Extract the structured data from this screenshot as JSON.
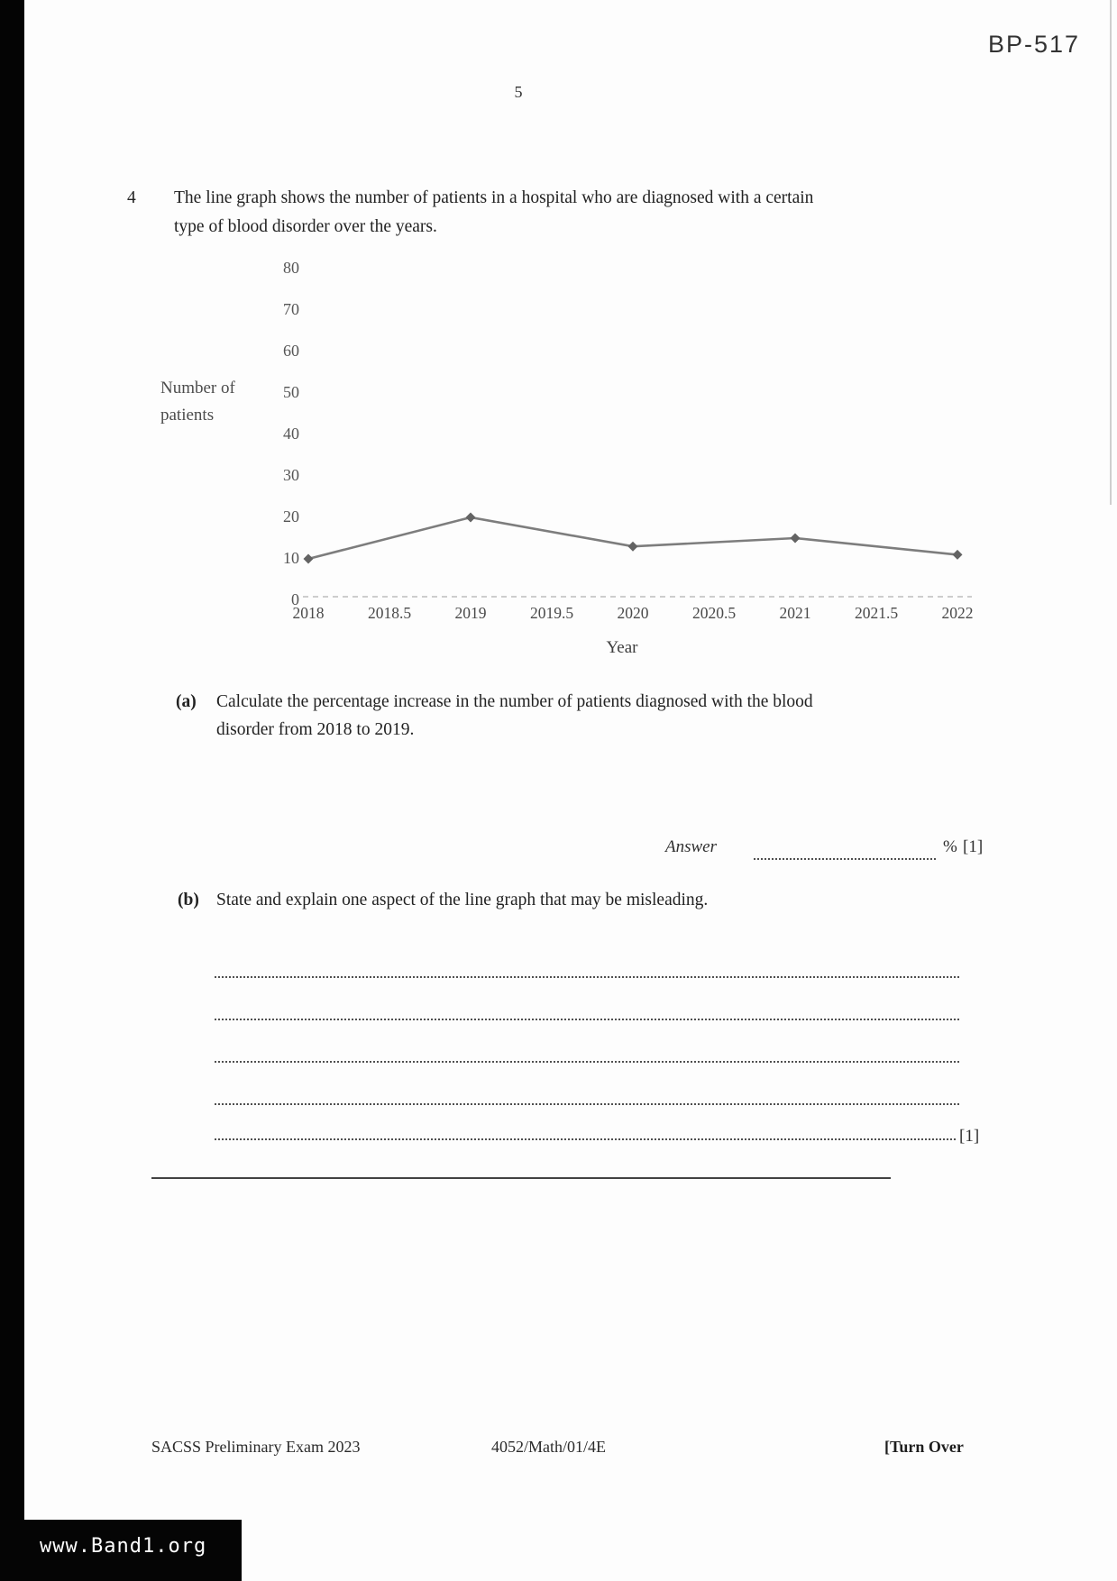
{
  "page": {
    "code": "BP-517",
    "number": "5",
    "watermark": "www.Band1.org"
  },
  "question": {
    "number": "4",
    "intro_line1": "The line graph shows the number of patients in a hospital who are diagnosed with a certain",
    "intro_line2": "type of blood disorder over the years."
  },
  "chart_data": {
    "type": "line",
    "title": "",
    "ylabel": "Number of patients",
    "ylabel_line1": "Number of",
    "ylabel_line2": "patients",
    "xlabel": "Year",
    "x": [
      2018,
      2019,
      2020,
      2021,
      2022
    ],
    "values": [
      10,
      20,
      13,
      15,
      11
    ],
    "x_tick_labels": [
      "2018",
      "2018.5",
      "2019",
      "2019.5",
      "2020",
      "2020.5",
      "2021",
      "2021.5",
      "2022"
    ],
    "y_ticks": [
      0,
      10,
      20,
      30,
      40,
      50,
      60,
      70,
      80
    ],
    "ylim": [
      0,
      80
    ],
    "grid": false,
    "legend": "none",
    "line_color": "#7d7d7d",
    "marker_color": "#636363",
    "baseline_color": "#bdbdbd"
  },
  "part_a": {
    "label": "(a)",
    "text_line1": "Calculate the percentage increase in the number of patients diagnosed with the blood",
    "text_line2": "disorder from 2018 to 2019.",
    "answer_label": "Answer",
    "unit": "%",
    "marks": "[1]"
  },
  "part_b": {
    "label": "(b)",
    "text": "State and explain one aspect of the line graph that may be misleading.",
    "marks": "[1]",
    "answer_lines": 5
  },
  "footer": {
    "left": "SACSS Preliminary Exam 2023",
    "center": "4052/Math/01/4E",
    "right": "[Turn Over"
  }
}
